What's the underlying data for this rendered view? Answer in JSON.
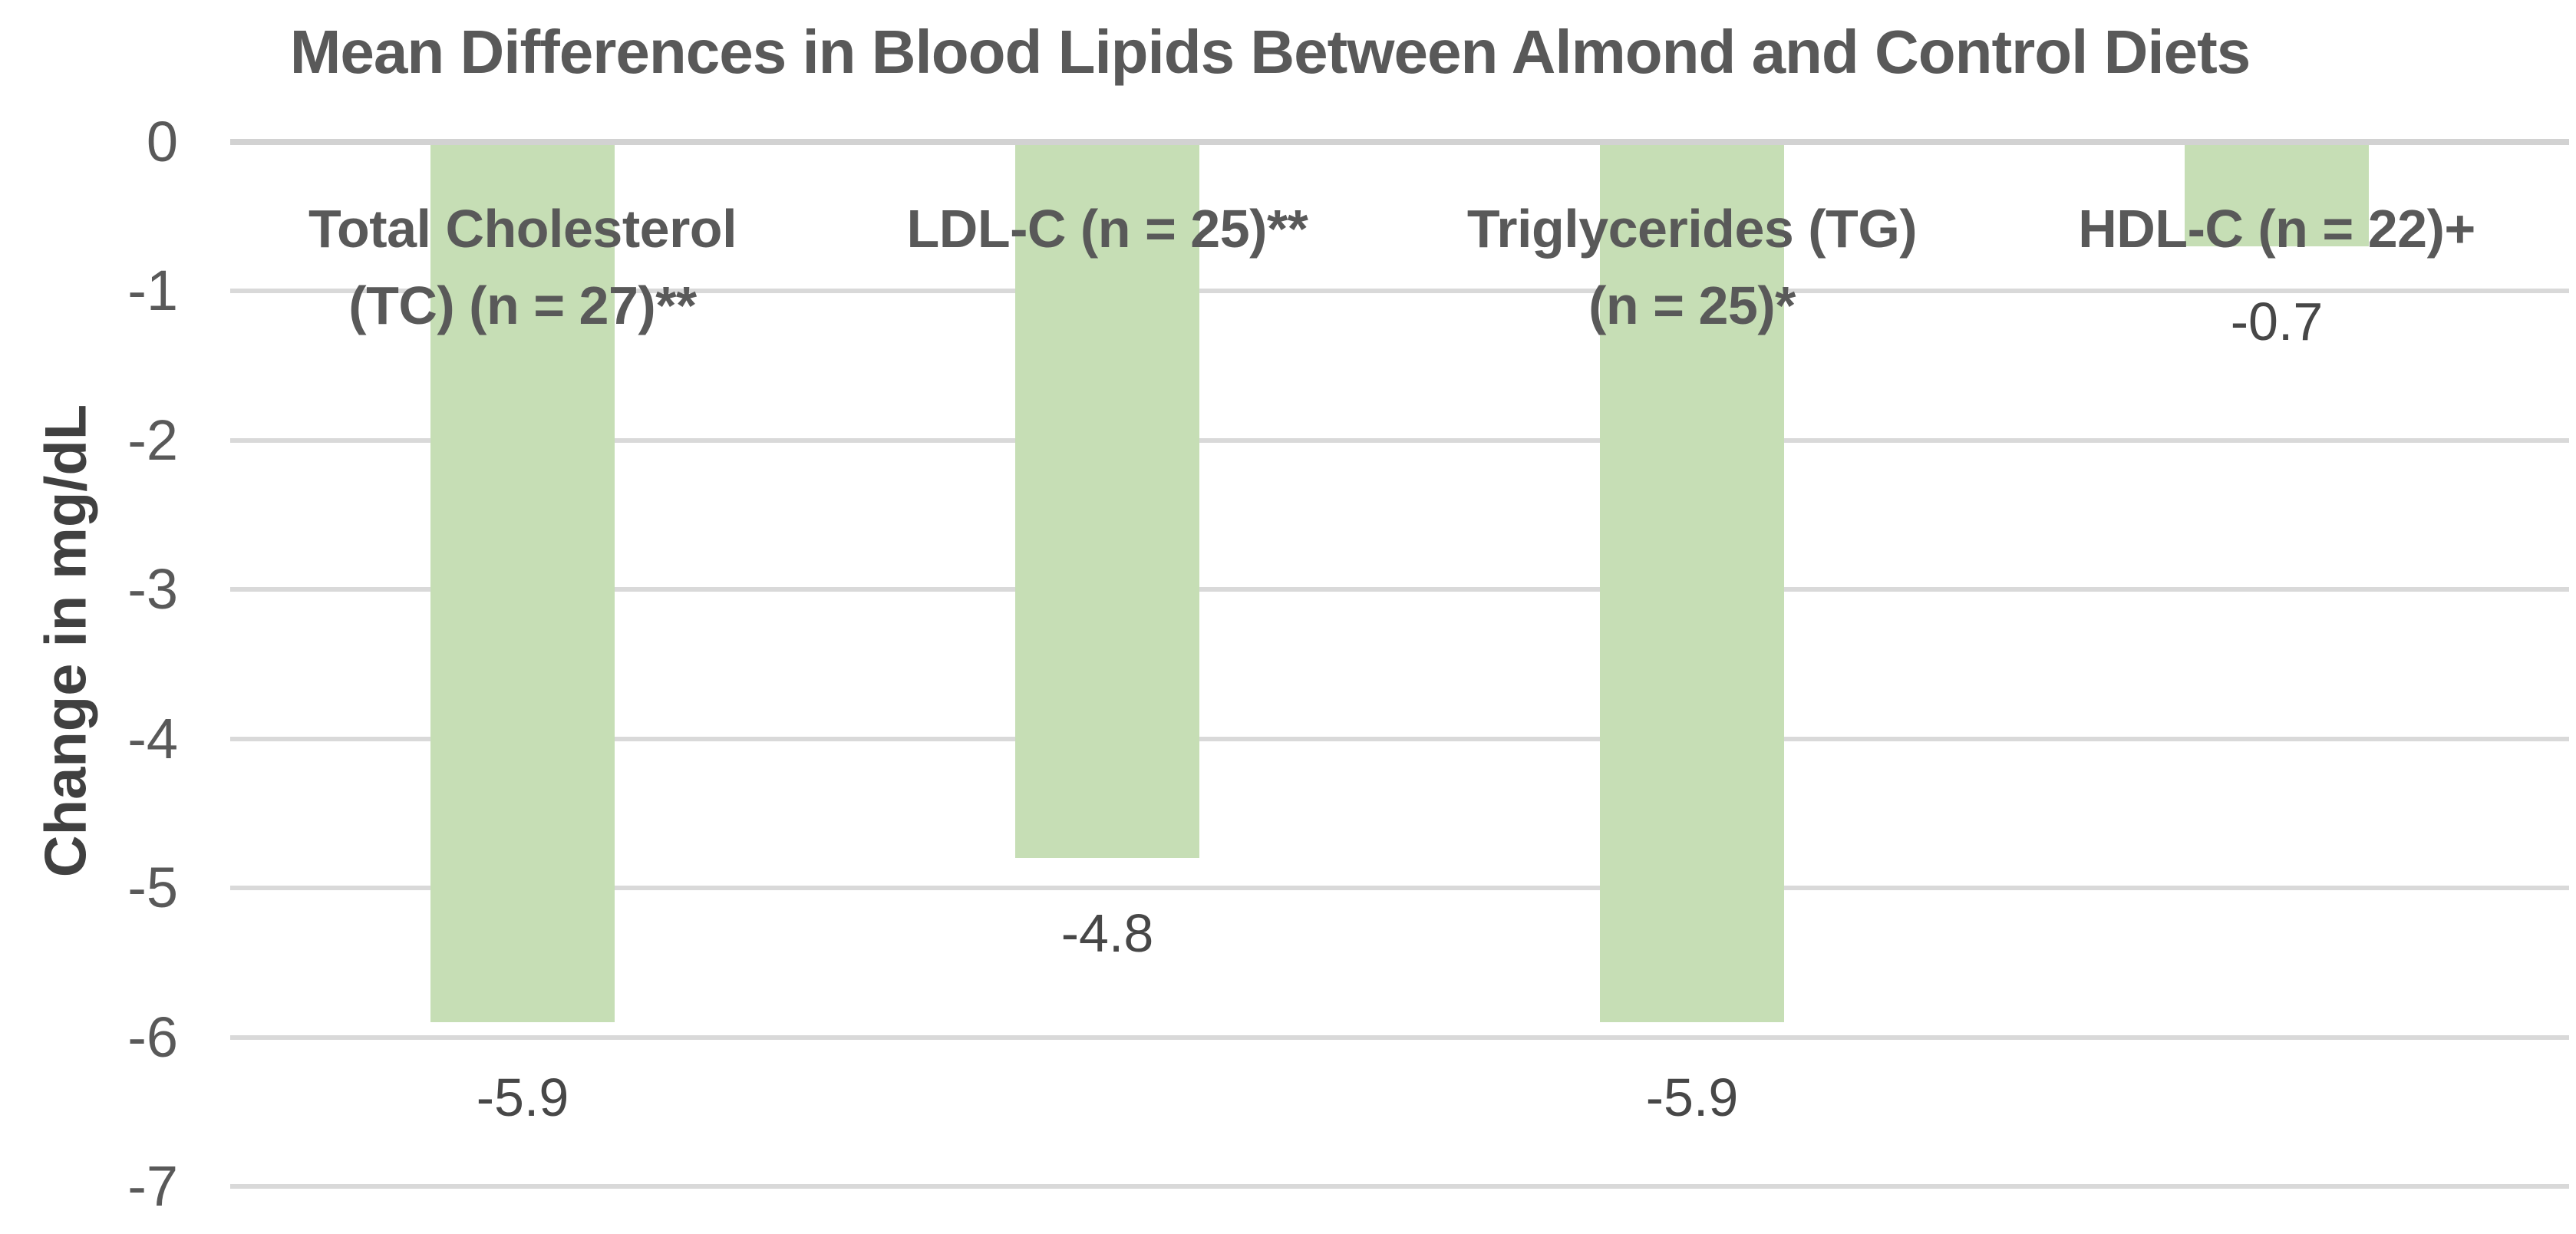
{
  "chart_data": {
    "type": "bar",
    "title": "Mean Differences in Blood Lipids Between Almond and Control Diets",
    "ylabel": "Change in mg/dL",
    "xlabel": "",
    "categories": [
      "Total Cholesterol (TC) (n = 27)**",
      "LDL-C (n = 25)**",
      "Triglycerides (TG) (n = 25)*",
      "HDL-C (n = 22)+"
    ],
    "category_lines": [
      [
        "Total Cholesterol",
        "(TC) (n = 27)**"
      ],
      [
        "LDL-C (n = 25)**"
      ],
      [
        "Triglycerides (TG)",
        "(n = 25)*"
      ],
      [
        "HDL-C (n = 22)+"
      ]
    ],
    "values": [
      -5.9,
      -4.8,
      -5.9,
      -0.7
    ],
    "data_labels": [
      "-5.9",
      "-4.8",
      "-5.9",
      "-0.7"
    ],
    "ylim": [
      -7,
      0
    ],
    "ytick_values": [
      0,
      -1,
      -2,
      -3,
      -4,
      -5,
      -6,
      -7
    ],
    "ytick_labels": [
      "0",
      "-1",
      "-2",
      "-3",
      "-4",
      "-5",
      "-6",
      "-7"
    ],
    "grid": true,
    "legend": "none",
    "colors": {
      "bar": "#c6deb5",
      "gridline": "#d9d9d9",
      "axis_line": "#d2d2d2",
      "text": "#595959",
      "data_label_text": "#474747",
      "axis_title_text": "#404040"
    }
  }
}
